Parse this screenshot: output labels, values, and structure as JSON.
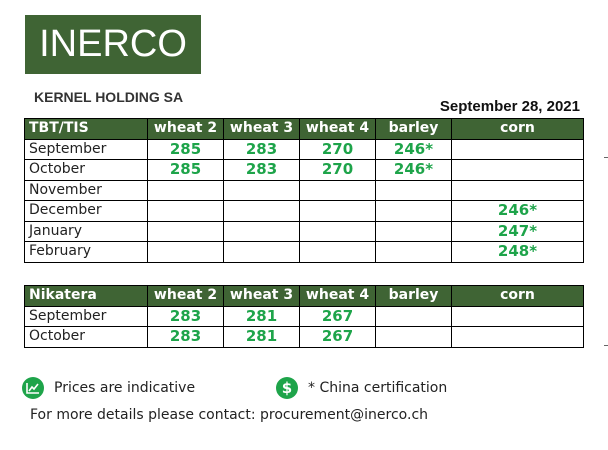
{
  "header": {
    "logo_text": "INERCO",
    "company": "KERNEL HOLDING SA",
    "date": "September 28, 2021"
  },
  "colors": {
    "header_green": "#3f6434",
    "value_green": "#1ea44a"
  },
  "tables": [
    {
      "columns": [
        "TBT/TIS",
        "wheat 2",
        "wheat 3",
        "wheat 4",
        "barley",
        "corn"
      ],
      "rows": [
        [
          "September",
          "285",
          "283",
          "270",
          "246*",
          ""
        ],
        [
          "October",
          "285",
          "283",
          "270",
          "246*",
          ""
        ],
        [
          "November",
          "",
          "",
          "",
          "",
          ""
        ],
        [
          "December",
          "",
          "",
          "",
          "",
          "246*"
        ],
        [
          "January",
          "",
          "",
          "",
          "",
          "247*"
        ],
        [
          "February",
          "",
          "",
          "",
          "",
          "248*"
        ]
      ]
    },
    {
      "columns": [
        "Nikatera",
        "wheat 2",
        "wheat 3",
        "wheat 4",
        "barley",
        "corn"
      ],
      "rows": [
        [
          "September",
          "283",
          "281",
          "267",
          "",
          ""
        ],
        [
          "October",
          "283",
          "281",
          "267",
          "",
          ""
        ]
      ]
    }
  ],
  "legend": [
    {
      "icon": "chart-icon",
      "text": "Prices are indicative"
    },
    {
      "icon": "dollar-icon",
      "text": "* China certification"
    }
  ],
  "contact": "For more details please contact: procurement@inerco.ch"
}
